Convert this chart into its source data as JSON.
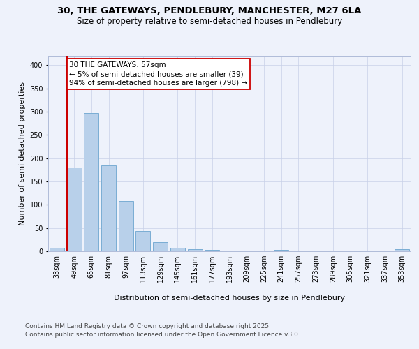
{
  "title_line1": "30, THE GATEWAYS, PENDLEBURY, MANCHESTER, M27 6LA",
  "title_line2": "Size of property relative to semi-detached houses in Pendlebury",
  "xlabel": "Distribution of semi-detached houses by size in Pendlebury",
  "ylabel": "Number of semi-detached properties",
  "categories": [
    "33sqm",
    "49sqm",
    "65sqm",
    "81sqm",
    "97sqm",
    "113sqm",
    "129sqm",
    "145sqm",
    "161sqm",
    "177sqm",
    "193sqm",
    "209sqm",
    "225sqm",
    "241sqm",
    "257sqm",
    "273sqm",
    "289sqm",
    "305sqm",
    "321sqm",
    "337sqm",
    "353sqm"
  ],
  "values": [
    8,
    180,
    297,
    184,
    108,
    43,
    19,
    8,
    5,
    3,
    0,
    0,
    0,
    3,
    0,
    0,
    0,
    0,
    0,
    0,
    5
  ],
  "bar_color": "#b8d0ea",
  "bar_edge_color": "#7aadd4",
  "vline_color": "#cc0000",
  "annotation_title": "30 THE GATEWAYS: 57sqm",
  "annotation_line1": "← 5% of semi-detached houses are smaller (39)",
  "annotation_line2": "94% of semi-detached houses are larger (798) →",
  "annotation_box_color": "#cc0000",
  "ylim": [
    0,
    420
  ],
  "yticks": [
    0,
    50,
    100,
    150,
    200,
    250,
    300,
    350,
    400
  ],
  "footer_line1": "Contains HM Land Registry data © Crown copyright and database right 2025.",
  "footer_line2": "Contains public sector information licensed under the Open Government Licence v3.0.",
  "bg_color": "#eef2fb",
  "plot_bg_color": "#eef2fb",
  "title_fontsize": 9.5,
  "subtitle_fontsize": 8.5,
  "axis_label_fontsize": 8,
  "tick_fontsize": 7,
  "annotation_fontsize": 7.5,
  "footer_fontsize": 6.5
}
